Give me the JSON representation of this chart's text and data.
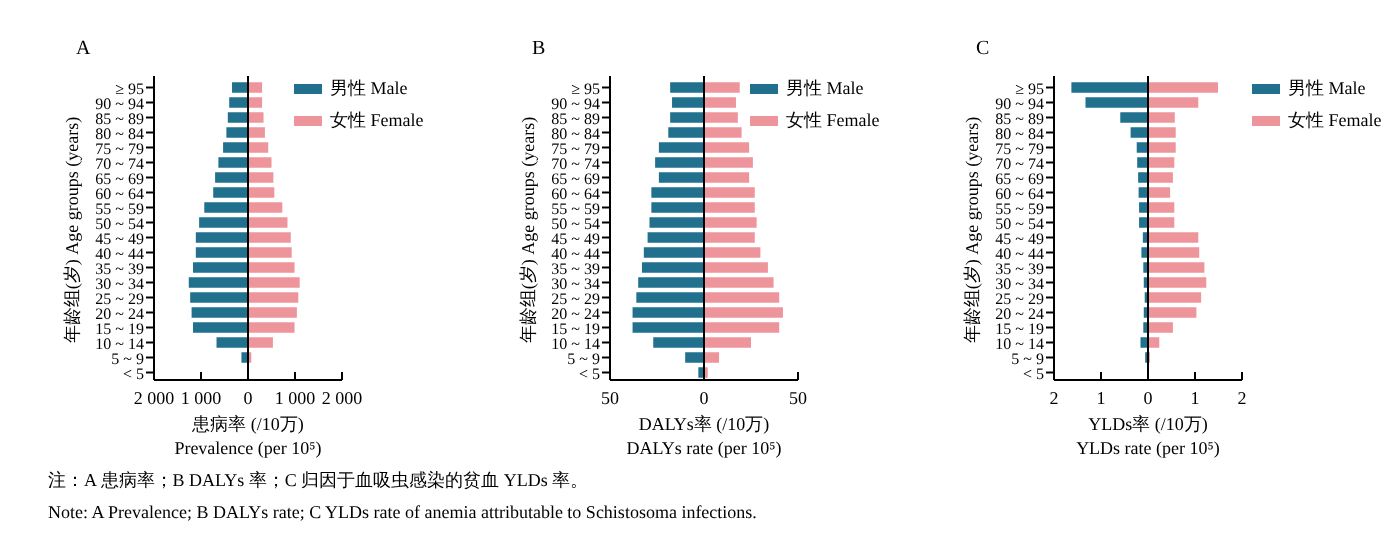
{
  "chart_data": [
    {
      "type": "bar",
      "orientation": "horizontal",
      "title": "A",
      "ylabel": "年龄组(岁) Age groups (years)",
      "xlabel": "患病率 (/10万)\nPrevalence (per 10⁵)",
      "categories": [
        "≥ 95",
        "90 ~ 94",
        "85 ~ 89",
        "80 ~ 84",
        "75 ~ 79",
        "70 ~ 74",
        "65 ~ 69",
        "60 ~ 64",
        "55 ~ 59",
        "50 ~ 54",
        "45 ~ 49",
        "40 ~ 44",
        "35 ~ 39",
        "30 ~ 34",
        "25 ~ 29",
        "20 ~ 24",
        "15 ~ 19",
        "10 ~ 14",
        "5 ~ 9",
        "< 5"
      ],
      "series": [
        {
          "name": "男性 Male",
          "color": "#21718e",
          "values": [
            -340,
            -400,
            -430,
            -460,
            -530,
            -630,
            -700,
            -740,
            -930,
            -1040,
            -1110,
            -1110,
            -1170,
            -1260,
            -1230,
            -1200,
            -1170,
            -670,
            -140,
            0
          ]
        },
        {
          "name": "女性 Female",
          "color": "#ee959c",
          "values": [
            300,
            300,
            330,
            360,
            430,
            500,
            540,
            560,
            730,
            840,
            910,
            930,
            990,
            1100,
            1070,
            1040,
            990,
            530,
            70,
            0
          ]
        }
      ],
      "stacked": true,
      "xlim": [
        -2000,
        2000
      ],
      "xticks": [
        {
          "value": -2000,
          "label": "2 000"
        },
        {
          "value": -1000,
          "label": "1 000"
        },
        0,
        {
          "value": 1000,
          "label": "1 000"
        },
        {
          "value": 2000,
          "label": "2 000"
        }
      ],
      "ref_lines": [
        {
          "axis": "x",
          "value": 0,
          "color": "#000000"
        }
      ],
      "legend": "top right",
      "annotations": [
        "注：A 患病率；B DALYs 率；C 归因于血吸虫感染的贫血 YLDs 率。",
        "Note: A Prevalence; B DALYs rate; C YLDs rate of anemia attributable to Schistosoma infections."
      ]
    },
    {
      "type": "bar",
      "orientation": "horizontal",
      "title": "B",
      "ylabel": "年龄组(岁) Age groups (years)",
      "xlabel": "DALYs率 (/10万)\nDALYs rate (per 10⁵)",
      "categories": [
        "≥ 95",
        "90 ~ 94",
        "85 ~ 89",
        "80 ~ 84",
        "75 ~ 79",
        "70 ~ 74",
        "65 ~ 69",
        "60 ~ 64",
        "55 ~ 59",
        "50 ~ 54",
        "45 ~ 49",
        "40 ~ 44",
        "35 ~ 39",
        "30 ~ 34",
        "25 ~ 29",
        "20 ~ 24",
        "15 ~ 19",
        "10 ~ 14",
        "5 ~ 9",
        "< 5"
      ],
      "series": [
        {
          "name": "男性 Male",
          "color": "#21718e",
          "values": [
            -18,
            -17,
            -18,
            -19,
            -24,
            -26,
            -24,
            -28,
            -28,
            -29,
            -30,
            -32,
            -33,
            -35,
            -36,
            -38,
            -38,
            -27,
            -10,
            -3
          ]
        },
        {
          "name": "女性 Female",
          "color": "#ee959c",
          "values": [
            19,
            17,
            18,
            20,
            24,
            26,
            24,
            27,
            27,
            28,
            27,
            30,
            34,
            37,
            40,
            42,
            40,
            25,
            8,
            2
          ]
        }
      ],
      "stacked": true,
      "xlim": [
        -50,
        50
      ],
      "xticks": [
        {
          "value": -50,
          "label": "50"
        },
        0,
        50
      ],
      "ref_lines": [
        {
          "axis": "x",
          "value": 0,
          "color": "#000000"
        }
      ],
      "legend": "top right"
    },
    {
      "type": "bar",
      "orientation": "horizontal",
      "title": "C",
      "ylabel": "年龄组(岁) Age groups (years)",
      "xlabel": "YLDs率 (/10万)\nYLDs rate (per 10⁵)",
      "categories": [
        "≥ 95",
        "90 ~ 94",
        "85 ~ 89",
        "80 ~ 84",
        "75 ~ 79",
        "70 ~ 74",
        "65 ~ 69",
        "60 ~ 64",
        "55 ~ 59",
        "50 ~ 54",
        "45 ~ 49",
        "40 ~ 44",
        "35 ~ 39",
        "30 ~ 34",
        "25 ~ 29",
        "20 ~ 24",
        "15 ~ 19",
        "10 ~ 14",
        "5 ~ 9",
        "< 5"
      ],
      "series": [
        {
          "name": "男性 Male",
          "color": "#21718e",
          "values": [
            -1.63,
            -1.33,
            -0.59,
            -0.37,
            -0.24,
            -0.23,
            -0.21,
            -0.2,
            -0.19,
            -0.19,
            -0.11,
            -0.14,
            -0.1,
            -0.09,
            -0.07,
            -0.09,
            -0.1,
            -0.16,
            -0.06,
            0
          ]
        },
        {
          "name": "女性 Female",
          "color": "#ee959c",
          "values": [
            1.49,
            1.07,
            0.57,
            0.59,
            0.59,
            0.56,
            0.53,
            0.47,
            0.56,
            0.56,
            1.07,
            1.09,
            1.2,
            1.24,
            1.13,
            1.03,
            0.53,
            0.24,
            0.04,
            0
          ]
        }
      ],
      "stacked": true,
      "xlim": [
        -2,
        2
      ],
      "xticks": [
        {
          "value": -2,
          "label": "2"
        },
        {
          "value": -1,
          "label": "1"
        },
        0,
        1,
        2
      ],
      "ref_lines": [
        {
          "axis": "x",
          "value": 0,
          "color": "#000000"
        }
      ],
      "legend": "right"
    }
  ]
}
